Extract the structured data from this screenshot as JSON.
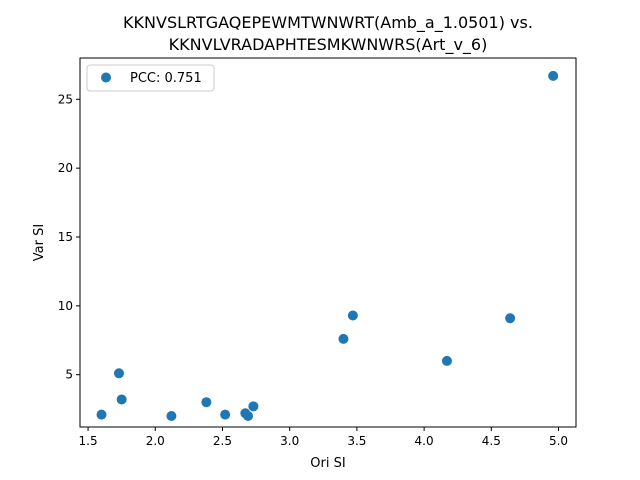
{
  "chart_data": {
    "type": "scatter",
    "title_line1": "KKNVSLRTGAQEPEWMTWNWRT(Amb_a_1.0501) vs.",
    "title_line2": "KKNVLVRADAPHTESMKWNWRS(Art_v_6)",
    "xlabel": "Ori SI",
    "ylabel": "Var SI",
    "xlim": [
      1.44,
      5.13
    ],
    "ylim": [
      1.2,
      28.0
    ],
    "xticks": [
      1.5,
      2.0,
      2.5,
      3.0,
      3.5,
      4.0,
      4.5,
      5.0
    ],
    "xtick_labels": [
      "1.5",
      "2.0",
      "2.5",
      "3.0",
      "3.5",
      "4.0",
      "4.5",
      "5.0"
    ],
    "yticks": [
      5,
      10,
      15,
      20,
      25
    ],
    "ytick_labels": [
      "5",
      "10",
      "15",
      "20",
      "25"
    ],
    "legend": {
      "label": "PCC: 0.751",
      "placement": "upper-left"
    },
    "grid": false,
    "color": "#1f77b4",
    "series": [
      {
        "name": "PCC: 0.751",
        "points": [
          {
            "x": 1.6,
            "y": 2.1
          },
          {
            "x": 1.73,
            "y": 5.1
          },
          {
            "x": 1.75,
            "y": 3.2
          },
          {
            "x": 2.12,
            "y": 2.0
          },
          {
            "x": 2.38,
            "y": 3.0
          },
          {
            "x": 2.52,
            "y": 2.1
          },
          {
            "x": 2.67,
            "y": 2.2
          },
          {
            "x": 2.69,
            "y": 2.0
          },
          {
            "x": 2.73,
            "y": 2.7
          },
          {
            "x": 3.4,
            "y": 7.6
          },
          {
            "x": 3.47,
            "y": 9.3
          },
          {
            "x": 4.17,
            "y": 6.0
          },
          {
            "x": 4.64,
            "y": 9.1
          },
          {
            "x": 4.96,
            "y": 26.7
          }
        ]
      }
    ]
  }
}
